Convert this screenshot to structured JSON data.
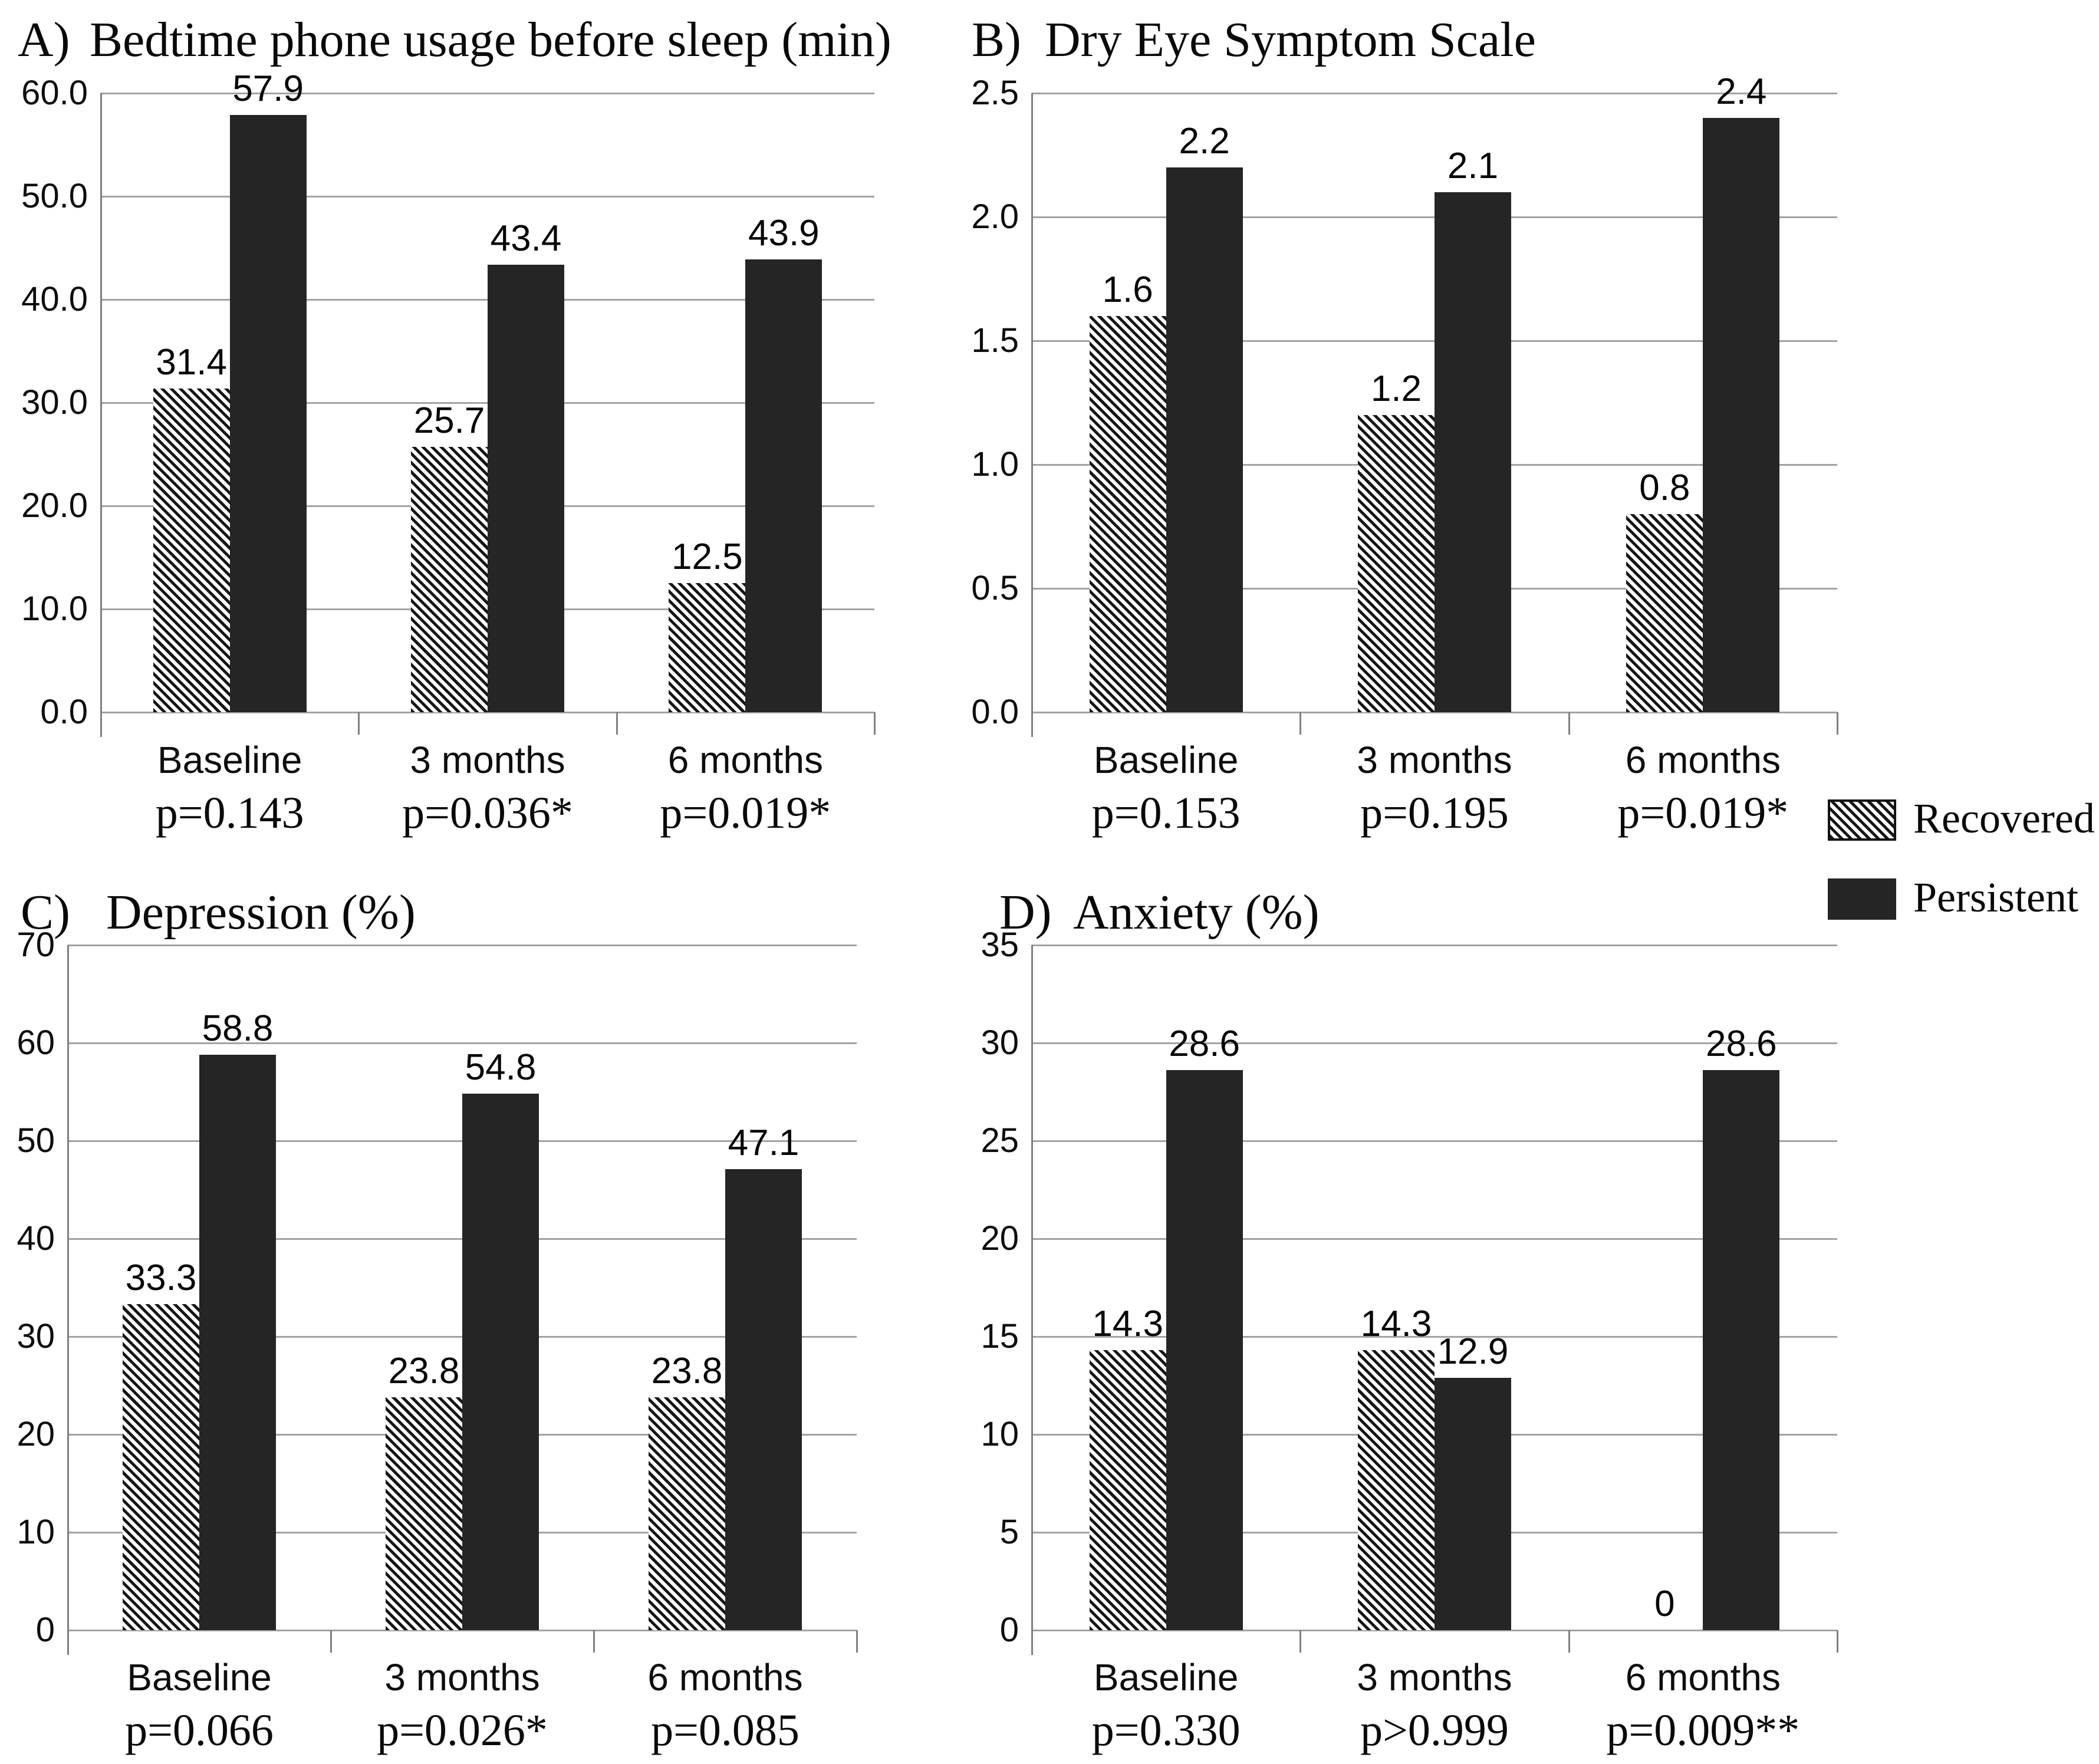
{
  "figure": {
    "background": "#ffffff",
    "description": "Four-panel bar chart figure comparing Recovered vs Persistent groups at Baseline, 3 months and 6 months"
  },
  "legend": {
    "position": "right of panel B, above panel D",
    "items": [
      {
        "label": "Recovered",
        "style": "hatched-diagonal"
      },
      {
        "label": "Persistent",
        "style": "solid-black"
      }
    ]
  },
  "colors": {
    "persistent_fill": "#252525",
    "hatch_foreground": "#161616",
    "gridline": "#a3a3a3",
    "axis": "#7f7f7f",
    "text": "#0d0d0d"
  },
  "chart_data": [
    {
      "id": "A",
      "type": "bar",
      "prefix": "A)",
      "title": "Bedtime phone usage before sleep (min)",
      "categories": [
        "Baseline",
        "3 months",
        "6 months"
      ],
      "p_values": [
        "p=0.143",
        "p=0.036*",
        "p=0.019*"
      ],
      "series": [
        {
          "name": "Recovered",
          "values": [
            31.4,
            25.7,
            12.5
          ]
        },
        {
          "name": "Persistent",
          "values": [
            57.9,
            43.4,
            43.9
          ]
        }
      ],
      "value_labels": [
        [
          "31.4",
          "25.7",
          "12.5"
        ],
        [
          "57.9",
          "43.4",
          "43.9"
        ]
      ],
      "ylim": [
        0,
        60
      ],
      "y_ticks": [
        "60.0",
        "50.0",
        "40.0",
        "30.0",
        "20.0",
        "10.0",
        "0.0"
      ],
      "grid": true
    },
    {
      "id": "B",
      "type": "bar",
      "prefix": "B)",
      "title": "Dry Eye Symptom Scale",
      "categories": [
        "Baseline",
        "3 months",
        "6 months"
      ],
      "p_values": [
        "p=0.153",
        "p=0.195",
        "p=0.019*"
      ],
      "series": [
        {
          "name": "Recovered",
          "values": [
            1.6,
            1.2,
            0.8
          ]
        },
        {
          "name": "Persistent",
          "values": [
            2.2,
            2.1,
            2.4
          ]
        }
      ],
      "value_labels": [
        [
          "1.6",
          "1.2",
          "0.8"
        ],
        [
          "2.2",
          "2.1",
          "2.4"
        ]
      ],
      "ylim": [
        0,
        2.5
      ],
      "y_ticks": [
        "2.5",
        "2.0",
        "1.5",
        "1.0",
        "0.5",
        "0.0"
      ],
      "grid": true
    },
    {
      "id": "C",
      "type": "bar",
      "prefix": "C)",
      "title": "Depression (%)",
      "categories": [
        "Baseline",
        "3 months",
        "6 months"
      ],
      "p_values": [
        "p=0.066",
        "p=0.026*",
        "p=0.085"
      ],
      "series": [
        {
          "name": "Recovered",
          "values": [
            33.3,
            23.8,
            23.8
          ]
        },
        {
          "name": "Persistent",
          "values": [
            58.8,
            54.8,
            47.1
          ]
        }
      ],
      "value_labels": [
        [
          "33.3",
          "23.8",
          "23.8"
        ],
        [
          "58.8",
          "54.8",
          "47.1"
        ]
      ],
      "ylim": [
        0,
        70
      ],
      "y_ticks": [
        "70",
        "60",
        "50",
        "40",
        "30",
        "20",
        "10",
        "0"
      ],
      "grid": true
    },
    {
      "id": "D",
      "type": "bar",
      "prefix": "D)",
      "title": "Anxiety (%)",
      "categories": [
        "Baseline",
        "3 months",
        "6 months"
      ],
      "p_values": [
        "p=0.330",
        "p>0.999",
        "p=0.009**"
      ],
      "series": [
        {
          "name": "Recovered",
          "values": [
            14.3,
            14.3,
            0
          ]
        },
        {
          "name": "Persistent",
          "values": [
            28.6,
            12.9,
            28.6
          ]
        }
      ],
      "value_labels": [
        [
          "14.3",
          "14.3",
          "0"
        ],
        [
          "28.6",
          "12.9",
          "28.6"
        ]
      ],
      "ylim": [
        0,
        35
      ],
      "y_ticks": [
        "35",
        "30",
        "25",
        "20",
        "15",
        "10",
        "5",
        "0"
      ],
      "grid": true
    }
  ]
}
